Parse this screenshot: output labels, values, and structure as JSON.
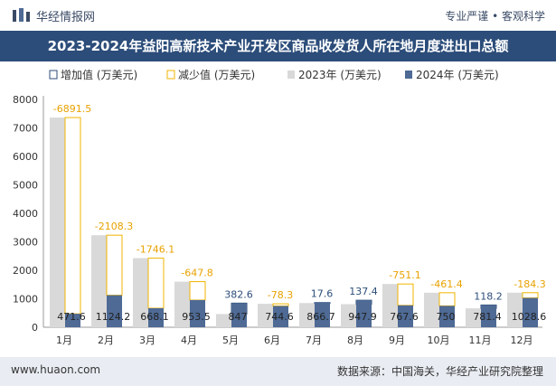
{
  "header": {
    "brand": "华经情报网",
    "slogan": "专业严谨 • 客观科学"
  },
  "chart_data": {
    "type": "bar",
    "title": "2023-2024年益阳高新技术产业开发区商品收发货人所在地月度进出口总额",
    "categories": [
      "1月",
      "2月",
      "3月",
      "4月",
      "5月",
      "6月",
      "7月",
      "8月",
      "9月",
      "10月",
      "11月",
      "12月"
    ],
    "series": [
      {
        "name": "2023年 (万美元)",
        "color": "#d9d9d9",
        "values": [
          7363.1,
          3232.5,
          2426.2,
          1601.3,
          464.4,
          822.9,
          849.1,
          810.5,
          1518.7,
          1211.4,
          663.2,
          1212.9
        ]
      },
      {
        "name": "2024年 (万美元)",
        "color": "#4e6a95",
        "values": [
          471.6,
          1124.2,
          668.1,
          953.5,
          847,
          744.6,
          866.7,
          947.9,
          767.6,
          750,
          781.4,
          1028.6
        ]
      }
    ],
    "change": {
      "increase_name": "增加值 (万美元)",
      "decrease_name": "减少值 (万美元)",
      "increase_color": "#2c4d7a",
      "decrease_color": "#f0b400",
      "values": [
        -6891.5,
        -2108.3,
        -1746.1,
        -647.8,
        382.6,
        -78.3,
        17.6,
        137.4,
        -751.1,
        -461.4,
        118.2,
        -184.3
      ]
    },
    "ylim": [
      0,
      8000
    ],
    "yticks": [
      0,
      1000,
      2000,
      3000,
      4000,
      5000,
      6000,
      7000,
      8000
    ],
    "legend_position": "top-left"
  },
  "footer": {
    "site": "www.huaon.com",
    "source": "数据来源：中国海关，华经产业研究院整理"
  }
}
